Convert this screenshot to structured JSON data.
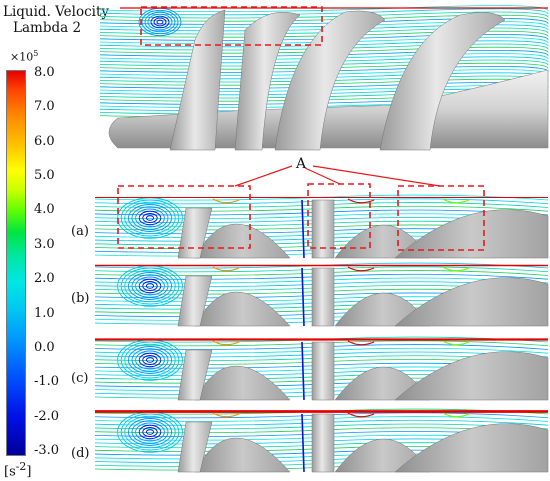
{
  "legend": {
    "title_line1": "Liquid. Velocity",
    "title_line2": "Lambda 2",
    "exponent_base": "×10",
    "exponent_power": "5",
    "unit": "[s",
    "unit_power": "-2",
    "unit_close": "]",
    "ticks": [
      "8.0",
      "7.0",
      "6.0",
      "5.0",
      "4.0",
      "3.0",
      "2.0",
      "1.0",
      "0.0",
      "-1.0",
      "-2.0",
      "-3.0"
    ],
    "colormap": "rainbow",
    "range": [
      -3.0,
      8.0
    ]
  },
  "annotation": {
    "marker": "A"
  },
  "panels": [
    "(a)",
    "(b)",
    "(c)",
    "(d)"
  ],
  "colors": {
    "highlight_box": "#e8181c",
    "blade": "#bdbdbd",
    "hub": "#d6d6d6"
  }
}
